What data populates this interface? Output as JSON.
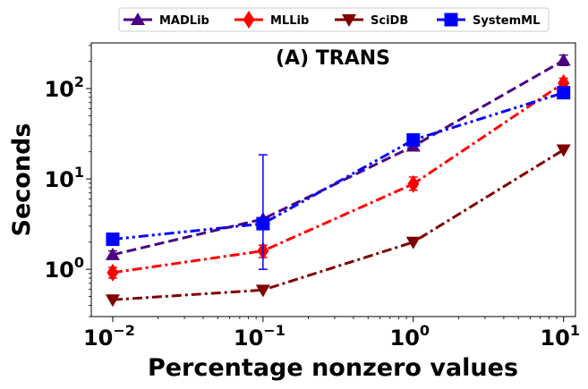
{
  "chart_data": {
    "type": "line",
    "title": "(A) TRANS",
    "xlabel": "Percentage nonzero values",
    "ylabel": "Seconds",
    "xscale": "log",
    "yscale": "log",
    "x": [
      0.01,
      0.1,
      1,
      10
    ],
    "xlim": [
      0.0072,
      12.0
    ],
    "ylim": [
      0.3,
      320
    ],
    "xticks": [
      {
        "value": 0.01,
        "base": "10",
        "exp": "−2"
      },
      {
        "value": 0.1,
        "base": "10",
        "exp": "−1"
      },
      {
        "value": 1,
        "base": "10",
        "exp": "0"
      },
      {
        "value": 10,
        "base": "10",
        "exp": "1"
      }
    ],
    "yticks": [
      {
        "value": 1,
        "base": "10",
        "exp": "0"
      },
      {
        "value": 10,
        "base": "10",
        "exp": "1"
      },
      {
        "value": 100,
        "base": "10",
        "exp": "2"
      }
    ],
    "legend_position": "top-center-outside",
    "series": [
      {
        "name": "MADLib",
        "color": "#4b0082",
        "marker": "triangle-up",
        "dash": "dashed",
        "values": [
          1.45,
          3.6,
          23,
          205
        ],
        "errors": [
          [
            1.3,
            1.6
          ],
          null,
          [
            21,
            25
          ],
          [
            180,
            235
          ]
        ]
      },
      {
        "name": "MLLib",
        "color": "#ff0000",
        "marker": "diamond",
        "dash": "dashdot",
        "values": [
          0.92,
          1.6,
          8.8,
          115
        ],
        "errors": [
          [
            0.8,
            1.05
          ],
          [
            1.35,
            1.85
          ],
          [
            7.5,
            10.5
          ],
          [
            100,
            130
          ]
        ]
      },
      {
        "name": "SciDB",
        "color": "#800000",
        "marker": "triangle-down",
        "dash": "dashdot",
        "values": [
          0.46,
          0.59,
          2.0,
          21
        ],
        "errors": [
          null,
          null,
          null,
          null
        ]
      },
      {
        "name": "SystemML",
        "color": "#0000ff",
        "marker": "square",
        "dash": "dashdotdot",
        "values": [
          2.15,
          3.2,
          27,
          90
        ],
        "errors": [
          [
            1.9,
            2.4
          ],
          [
            1.0,
            18.5
          ],
          null,
          null
        ]
      }
    ]
  }
}
